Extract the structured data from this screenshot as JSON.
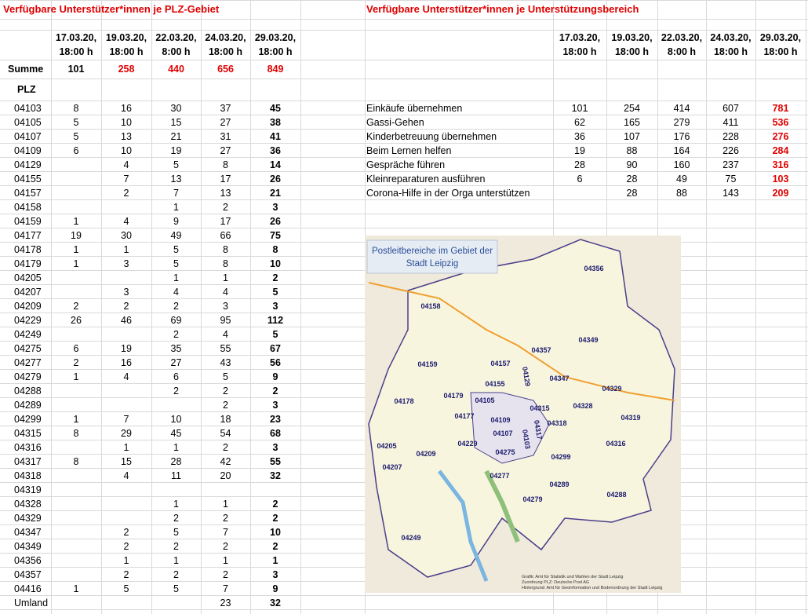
{
  "left": {
    "title": "Verfügbare Unterstützer*innen je PLZ-Gebiet",
    "headers": [
      [
        "17.03.20,",
        "18:00 h"
      ],
      [
        "19.03.20,",
        "18:00 h"
      ],
      [
        "22.03.20,",
        "8:00 h"
      ],
      [
        "24.03.20,",
        "18:00 h"
      ],
      [
        "29.03.20,",
        "18:00 h"
      ]
    ],
    "sum_label": "Summe",
    "sum": [
      101,
      258,
      440,
      656,
      849
    ],
    "plz_label": "PLZ",
    "rows": [
      {
        "label": "04103",
        "values": [
          8,
          16,
          30,
          37,
          45
        ]
      },
      {
        "label": "04105",
        "values": [
          5,
          10,
          15,
          27,
          38
        ]
      },
      {
        "label": "04107",
        "values": [
          5,
          13,
          21,
          31,
          41
        ]
      },
      {
        "label": "04109",
        "values": [
          6,
          10,
          19,
          27,
          36
        ]
      },
      {
        "label": "04129",
        "values": [
          null,
          4,
          5,
          8,
          14
        ]
      },
      {
        "label": "04155",
        "values": [
          null,
          7,
          13,
          17,
          26
        ]
      },
      {
        "label": "04157",
        "values": [
          null,
          2,
          7,
          13,
          21
        ]
      },
      {
        "label": "04158",
        "values": [
          null,
          null,
          1,
          2,
          3
        ]
      },
      {
        "label": "04159",
        "values": [
          1,
          4,
          9,
          17,
          26
        ]
      },
      {
        "label": "04177",
        "values": [
          19,
          30,
          49,
          66,
          75
        ]
      },
      {
        "label": "04178",
        "values": [
          1,
          1,
          5,
          8,
          8
        ]
      },
      {
        "label": "04179",
        "values": [
          1,
          3,
          5,
          8,
          10
        ]
      },
      {
        "label": "04205",
        "values": [
          null,
          null,
          1,
          1,
          2
        ]
      },
      {
        "label": "04207",
        "values": [
          null,
          3,
          4,
          4,
          5
        ]
      },
      {
        "label": "04209",
        "values": [
          2,
          2,
          2,
          3,
          3
        ]
      },
      {
        "label": "04229",
        "values": [
          26,
          46,
          69,
          95,
          112
        ]
      },
      {
        "label": "04249",
        "values": [
          null,
          null,
          2,
          4,
          5
        ]
      },
      {
        "label": "04275",
        "values": [
          6,
          19,
          35,
          55,
          67
        ]
      },
      {
        "label": "04277",
        "values": [
          2,
          16,
          27,
          43,
          56
        ]
      },
      {
        "label": "04279",
        "values": [
          1,
          4,
          6,
          5,
          9
        ]
      },
      {
        "label": "04288",
        "values": [
          null,
          null,
          2,
          2,
          2
        ]
      },
      {
        "label": "04289",
        "values": [
          null,
          null,
          null,
          2,
          3
        ]
      },
      {
        "label": "04299",
        "values": [
          1,
          7,
          10,
          18,
          23
        ]
      },
      {
        "label": "04315",
        "values": [
          8,
          29,
          45,
          54,
          68
        ]
      },
      {
        "label": "04316",
        "values": [
          null,
          1,
          1,
          2,
          3
        ]
      },
      {
        "label": "04317",
        "values": [
          8,
          15,
          28,
          42,
          55
        ]
      },
      {
        "label": "04318",
        "values": [
          null,
          4,
          11,
          20,
          32
        ]
      },
      {
        "label": "04319",
        "values": [
          null,
          null,
          null,
          null,
          null
        ]
      },
      {
        "label": "04328",
        "values": [
          null,
          null,
          1,
          1,
          2
        ]
      },
      {
        "label": "04329",
        "values": [
          null,
          null,
          2,
          2,
          2
        ]
      },
      {
        "label": "04347",
        "values": [
          null,
          2,
          5,
          7,
          10
        ]
      },
      {
        "label": "04349",
        "values": [
          null,
          2,
          2,
          2,
          2
        ]
      },
      {
        "label": "04356",
        "values": [
          null,
          1,
          1,
          1,
          1
        ]
      },
      {
        "label": "04357",
        "values": [
          null,
          2,
          2,
          2,
          3
        ]
      },
      {
        "label": "04416",
        "values": [
          1,
          5,
          5,
          7,
          9
        ]
      },
      {
        "label": "Umland",
        "values": [
          null,
          null,
          null,
          23,
          32
        ]
      }
    ]
  },
  "right": {
    "title": "Verfügbare Unterstützer*innen je Unterstützungsbereich",
    "headers": [
      [
        "17.03.20,",
        "18:00 h"
      ],
      [
        "19.03.20,",
        "18:00 h"
      ],
      [
        "22.03.20,",
        "8:00 h"
      ],
      [
        "24.03.20,",
        "18:00 h"
      ],
      [
        "29.03.20,",
        "18:00 h"
      ]
    ],
    "rows": [
      {
        "label": "Einkäufe übernehmen",
        "values": [
          101,
          254,
          414,
          607,
          781
        ]
      },
      {
        "label": "Gassi-Gehen",
        "values": [
          62,
          165,
          279,
          411,
          536
        ]
      },
      {
        "label": "Kinderbetreuung übernehmen",
        "values": [
          36,
          107,
          176,
          228,
          276
        ]
      },
      {
        "label": "Beim Lernen helfen",
        "values": [
          19,
          88,
          164,
          226,
          284
        ]
      },
      {
        "label": "Gespräche führen",
        "values": [
          28,
          90,
          160,
          237,
          316
        ]
      },
      {
        "label": "Kleinreparaturen ausführen",
        "values": [
          6,
          28,
          49,
          75,
          103
        ]
      },
      {
        "label": "Corona-Hilfe in der Orga unterstützen",
        "values": [
          null,
          28,
          88,
          143,
          209
        ]
      }
    ]
  },
  "map": {
    "title": [
      "Postleitbereiche im Gebiet der",
      "Stadt Leipzig"
    ],
    "labels": [
      "04356",
      "04158",
      "04349",
      "04357",
      "04157",
      "04129",
      "04159",
      "04347",
      "04329",
      "04155",
      "04179",
      "04105",
      "04178",
      "04328",
      "04315",
      "04319",
      "04177",
      "04109",
      "04318",
      "04317",
      "04107",
      "04103",
      "04229",
      "04316",
      "04205",
      "04209",
      "04275",
      "04299",
      "04207",
      "04277",
      "04289",
      "04288",
      "04279",
      "04249"
    ],
    "credits": [
      "Grafik: Amt für Statistik und Wahlen der Stadt Leipzig",
      "Zuordnung PLZ: Deutsche Post AG",
      "Hintergrund: Amt für Geoinformation und Bodenordnung der Stadt Leipzig"
    ]
  }
}
